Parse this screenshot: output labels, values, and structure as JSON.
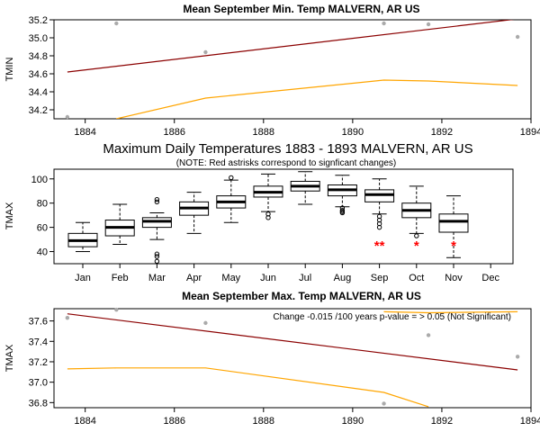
{
  "chart_data": [
    {
      "type": "line",
      "title": "Mean September Min. Temp MALVERN, AR US",
      "ylabel": "TMIN",
      "xlabel": "",
      "xlim": [
        1883.3,
        1894.0
      ],
      "ylim": [
        34.1,
        35.2
      ],
      "xticks": [
        1884,
        1886,
        1888,
        1890,
        1892,
        1894
      ],
      "yticks": [
        34.2,
        34.4,
        34.6,
        34.8,
        35.0,
        35.2
      ],
      "points": [
        {
          "x": 1883.6,
          "y": 34.12
        },
        {
          "x": 1884.7,
          "y": 35.16
        },
        {
          "x": 1886.7,
          "y": 34.84
        },
        {
          "x": 1890.7,
          "y": 35.16
        },
        {
          "x": 1891.7,
          "y": 35.15
        },
        {
          "x": 1893.7,
          "y": 35.01
        }
      ],
      "trend": {
        "color": "#8b0000",
        "points": [
          [
            1883.6,
            34.62
          ],
          [
            1893.7,
            35.21
          ]
        ]
      },
      "smooth": {
        "color": "#ffa500",
        "points": [
          [
            1884.7,
            34.1
          ],
          [
            1886.7,
            34.33
          ],
          [
            1890.7,
            34.53
          ],
          [
            1891.7,
            34.52
          ],
          [
            1893.7,
            34.47
          ]
        ]
      }
    },
    {
      "type": "boxplot",
      "title": "Maximum Daily Temperatures 1883 - 1893 MALVERN, AR US",
      "subtitle": "(NOTE: Red astrisks correspond to signficant changes)",
      "ylabel": "TMAX",
      "xlabel": "",
      "ylim": [
        30,
        108
      ],
      "yticks": [
        40,
        60,
        80,
        100
      ],
      "categories": [
        "Jan",
        "Feb",
        "Mar",
        "Apr",
        "May",
        "Jun",
        "Jul",
        "Aug",
        "Sep",
        "Oct",
        "Nov",
        "Dec"
      ],
      "boxes": [
        {
          "min": 40,
          "q1": 44,
          "median": 49,
          "q3": 55,
          "max": 64,
          "outliers": []
        },
        {
          "min": 46,
          "q1": 53,
          "median": 60,
          "q3": 66,
          "max": 79,
          "outliers": []
        },
        {
          "min": 50,
          "q1": 60,
          "median": 65,
          "q3": 68,
          "max": 72,
          "outliers": [
            81,
            83,
            38,
            36,
            32
          ]
        },
        {
          "min": 55,
          "q1": 70,
          "median": 76,
          "q3": 81,
          "max": 89,
          "outliers": []
        },
        {
          "min": 64,
          "q1": 76,
          "median": 81,
          "q3": 86,
          "max": 99,
          "outliers": [
            101
          ]
        },
        {
          "min": 73,
          "q1": 85,
          "median": 89,
          "q3": 94,
          "max": 104,
          "outliers": [
            71,
            68
          ]
        },
        {
          "min": 79,
          "q1": 90,
          "median": 94,
          "q3": 98,
          "max": 106,
          "outliers": []
        },
        {
          "min": 77,
          "q1": 86,
          "median": 91,
          "q3": 95,
          "max": 103,
          "outliers": [
            76,
            74,
            73,
            72
          ]
        },
        {
          "min": 71,
          "q1": 81,
          "median": 87,
          "q3": 91,
          "max": 100,
          "outliers": [
            69,
            66,
            63,
            60
          ]
        },
        {
          "min": 55,
          "q1": 68,
          "median": 74,
          "q3": 80,
          "max": 94,
          "outliers": [
            53
          ]
        },
        {
          "min": 35,
          "q1": 56,
          "median": 65,
          "q3": 71,
          "max": 86,
          "outliers": []
        },
        {
          "min": null,
          "q1": null,
          "median": null,
          "q3": null,
          "max": null,
          "outliers": []
        }
      ],
      "significance": [
        {
          "category": "Sep",
          "marker": "**"
        },
        {
          "category": "Oct",
          "marker": "*"
        },
        {
          "category": "Nov",
          "marker": "*"
        }
      ],
      "significance_color": "#ff0000"
    },
    {
      "type": "line",
      "title": "Mean September Max. Temp MALVERN, AR US",
      "ylabel": "TMAX",
      "xlabel": "",
      "annotation": "Change -0.015 /100 years p-value = > 0.05 (Not Significant)",
      "xlim": [
        1883.3,
        1894.0
      ],
      "ylim": [
        36.75,
        37.72
      ],
      "xticks": [
        1884,
        1886,
        1888,
        1890,
        1892,
        1894
      ],
      "yticks": [
        36.8,
        37.0,
        37.2,
        37.4,
        37.6
      ],
      "points": [
        {
          "x": 1883.6,
          "y": 37.63
        },
        {
          "x": 1884.7,
          "y": 37.71
        },
        {
          "x": 1886.7,
          "y": 37.58
        },
        {
          "x": 1890.7,
          "y": 36.79
        },
        {
          "x": 1891.7,
          "y": 37.46
        },
        {
          "x": 1893.7,
          "y": 37.25
        }
      ],
      "trend": {
        "color": "#8b0000",
        "points": [
          [
            1883.6,
            37.67
          ],
          [
            1893.7,
            37.12
          ]
        ]
      },
      "smooth": {
        "color": "#ffa500",
        "points": [
          [
            1883.6,
            37.13
          ],
          [
            1884.7,
            37.14
          ],
          [
            1886.7,
            37.14
          ],
          [
            1890.7,
            36.9
          ],
          [
            1891.7,
            36.76
          ]
        ]
      },
      "smooth_upper": {
        "color": "#ffa500",
        "points": [
          [
            1890.7,
            37.69
          ],
          [
            1891.7,
            37.68
          ],
          [
            1893.7,
            37.69
          ]
        ]
      }
    }
  ]
}
